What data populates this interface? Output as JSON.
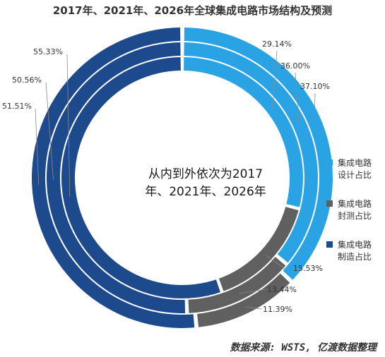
{
  "chart_data": {
    "type": "pie",
    "title": "2017年、2021年、2026年全球集成电路市场结构及预测",
    "center_label": [
      "从内到外依次为2017",
      "年、2021年、2026年"
    ],
    "categories": [
      "集成电路设计占比",
      "集成电路封测占比",
      "集成电路制造占比"
    ],
    "legend": [
      {
        "line1": "集成电路",
        "line2": "设计占比",
        "color": "#29a3e3"
      },
      {
        "line1": "集成电路",
        "line2": "封测占比",
        "color": "#606060"
      },
      {
        "line1": "集成电路",
        "line2": "制造占比",
        "color": "#1d4a8c"
      }
    ],
    "legend_position": "right",
    "series": [
      {
        "name": "2017年",
        "values": [
          29.14,
          15.53,
          55.33
        ],
        "labels": [
          "29.14%",
          "15.53%",
          "55.33%"
        ]
      },
      {
        "name": "2021年",
        "values": [
          36.0,
          13.44,
          50.56
        ],
        "labels": [
          "36.00%",
          "13.44%",
          "50.56%"
        ]
      },
      {
        "name": "2026年",
        "values": [
          37.1,
          11.39,
          51.51
        ],
        "labels": [
          "37.10%",
          "11.39%",
          "51.51%"
        ]
      }
    ],
    "colors": [
      "#29a3e3",
      "#606060",
      "#1d4a8c"
    ]
  },
  "source": "数据来源: WSTS, 亿渡数据整理"
}
